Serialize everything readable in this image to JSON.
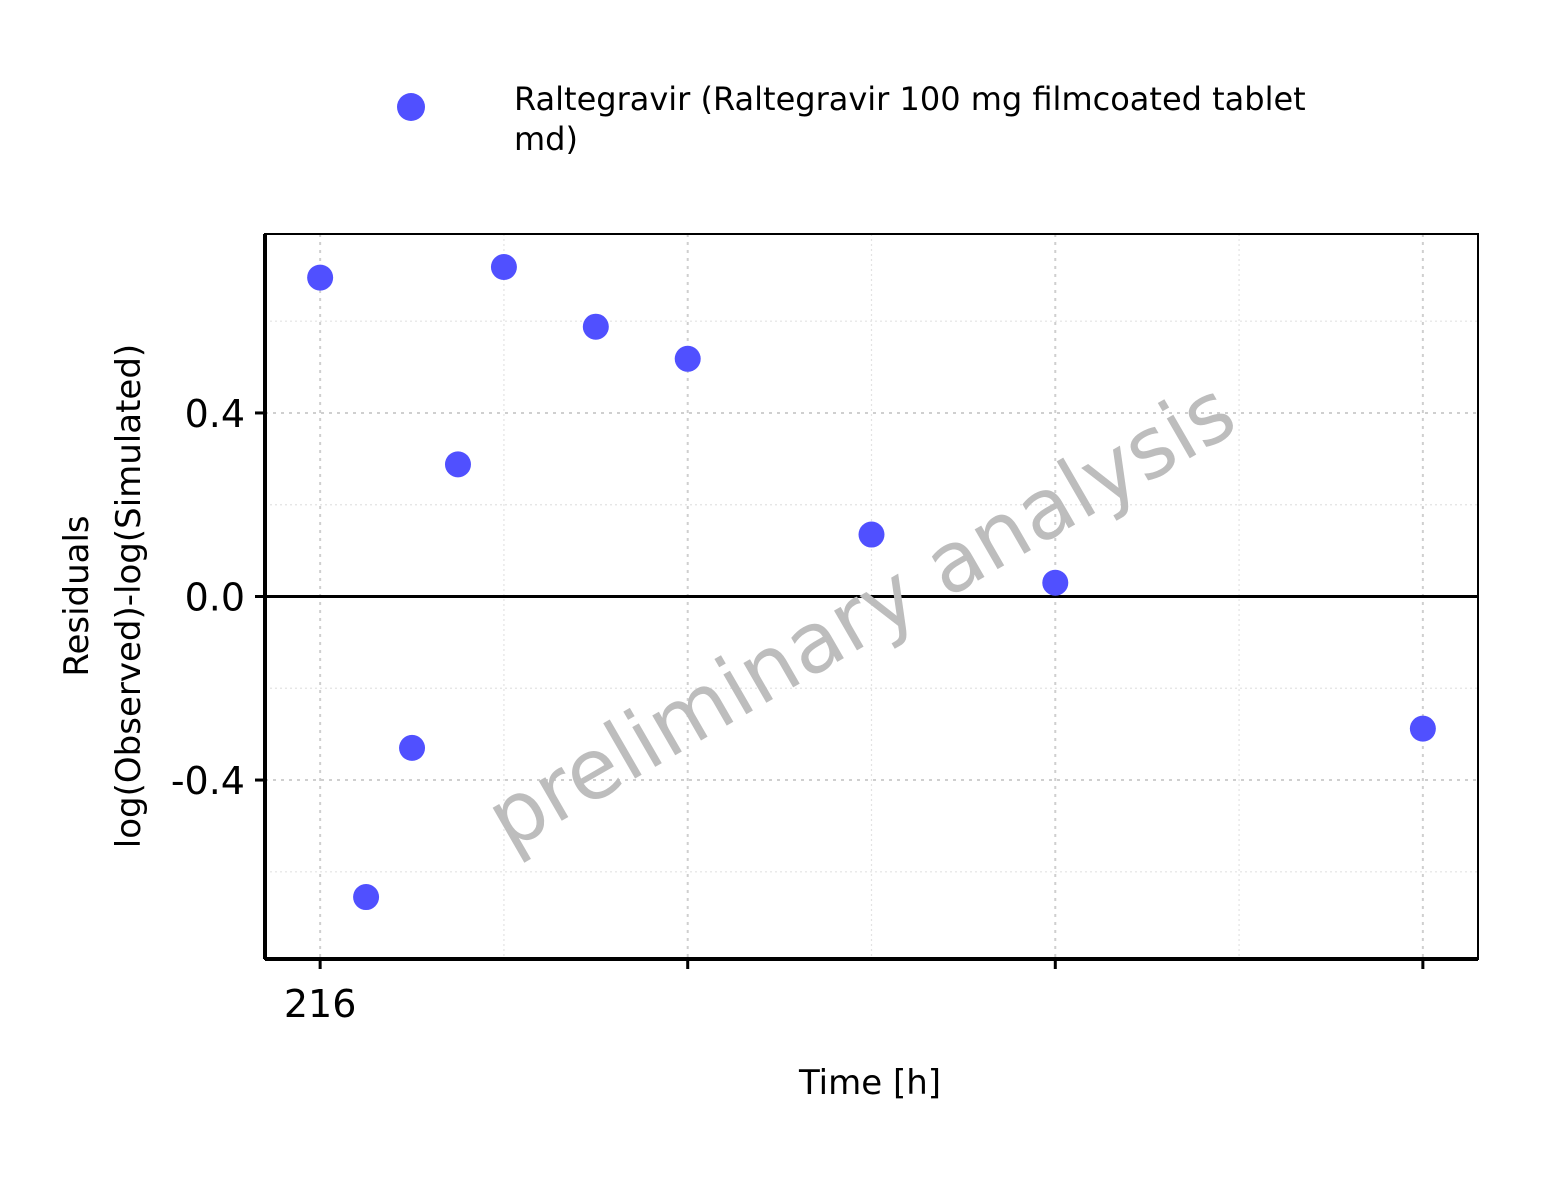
{
  "chart_data": {
    "type": "scatter",
    "title": "",
    "xlabel": "Time [h]",
    "ylabel_lines": [
      "Residuals",
      "log(Observed)-log(Simulated)"
    ],
    "xlim": [
      215.85,
      219.15
    ],
    "ylim": [
      -0.79,
      0.79
    ],
    "x_major_ticks": [
      216,
      217,
      218,
      219
    ],
    "x_tick_labels": [
      "216",
      "",
      "",
      ""
    ],
    "x_minor_ticks": [
      216.5,
      217.5,
      218.5
    ],
    "y_major_ticks": [
      -0.4,
      0.0,
      0.4
    ],
    "y_tick_labels": [
      "-0.4",
      "0.0",
      "0.4"
    ],
    "y_minor_ticks": [
      -0.6,
      -0.2,
      0.2,
      0.6
    ],
    "grid": true,
    "reference_line_y": 0,
    "legend_position": "top",
    "watermark": "preliminary analysis",
    "series": [
      {
        "name": "Raltegravir (Raltegravir 100 mg filmcoated tablet md)",
        "legend_lines": [
          "Raltegravir (Raltegravir 100 mg filmcoated tablet",
          "md)"
        ],
        "color": "#5050FF",
        "points": [
          {
            "x": 216.0,
            "y": 0.695
          },
          {
            "x": 216.125,
            "y": -0.655
          },
          {
            "x": 216.25,
            "y": -0.33
          },
          {
            "x": 216.375,
            "y": 0.288
          },
          {
            "x": 216.5,
            "y": 0.718
          },
          {
            "x": 216.75,
            "y": 0.588
          },
          {
            "x": 217.0,
            "y": 0.518
          },
          {
            "x": 217.5,
            "y": 0.135
          },
          {
            "x": 218.0,
            "y": 0.03
          },
          {
            "x": 219.0,
            "y": -0.288
          }
        ]
      }
    ]
  }
}
